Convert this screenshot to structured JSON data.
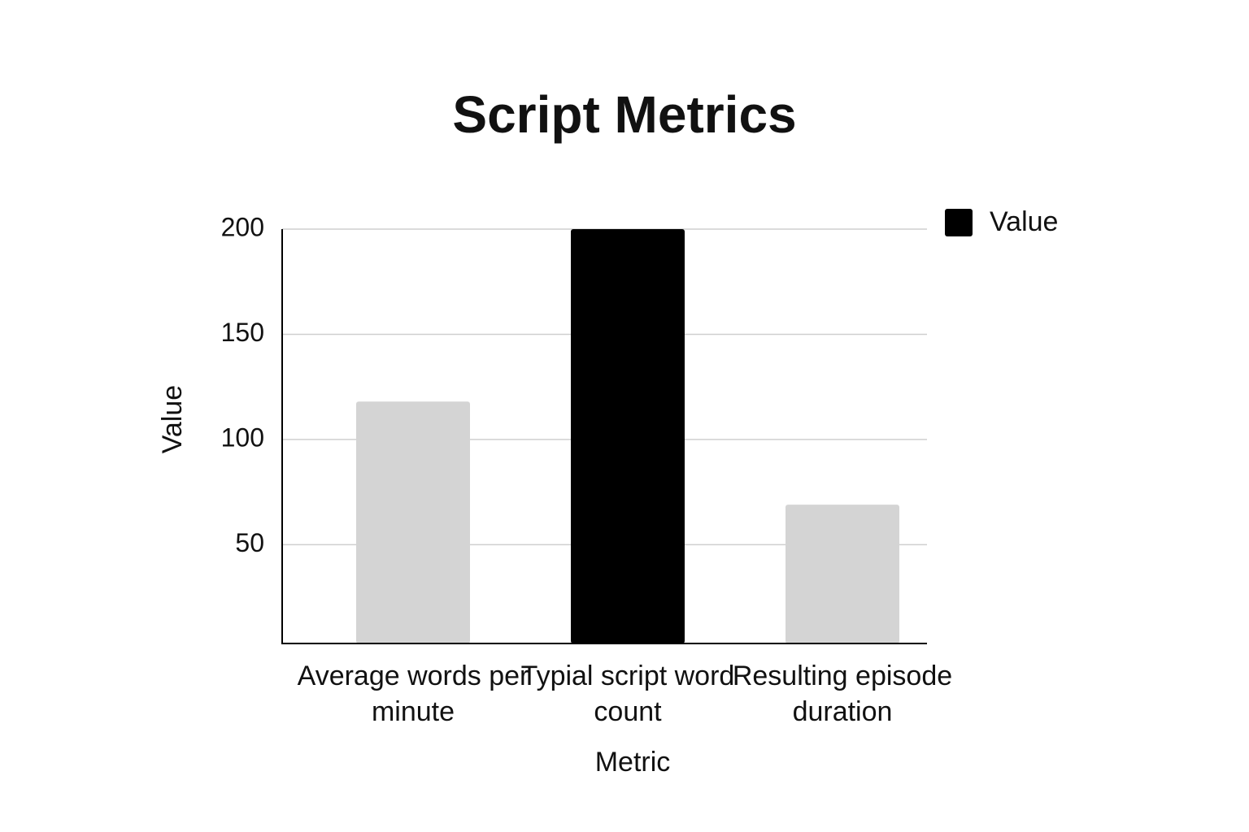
{
  "chart_data": {
    "type": "bar",
    "title": "Script Metrics",
    "x_label": "Metric",
    "y_label": "Value",
    "categories": [
      "Average words per minute",
      "Typial script word count",
      "Resulting episode duration"
    ],
    "series": [
      {
        "name": "Value",
        "color": "#000000",
        "colors": [
          "#d4d4d4",
          "#000000",
          "#d4d4d4"
        ],
        "values": [
          118,
          200,
          69
        ]
      }
    ],
    "ylim": [
      3,
      200
    ],
    "yticks": [
      50,
      100,
      150,
      200
    ],
    "grid": true,
    "legend": "top-right"
  }
}
